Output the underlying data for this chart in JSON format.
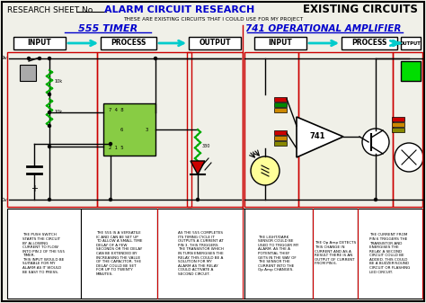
{
  "title_left": "RESEARCH SHEET No",
  "title_center": "ALARM CIRCUIT RESEARCH",
  "title_right": "EXISTING CIRCUITS",
  "subtitle": "THESE ARE EXISTING CIRCUITS THAT I COULD USE FOR MY PROJECT",
  "section1_title": "555 TIMER",
  "section2_title": "741 OPERATIONAL AMPLIFIER",
  "bg_color": "#f0f0e8",
  "border_color": "#000000",
  "blue_color": "#0000cc",
  "red_color": "#cc0000",
  "green_color": "#00cc00",
  "desc1": "THE PUSH SWITCH\nSTARTS THE CIRCUIT\nBY ALLOWING\nCURRENT TO FLOW\nINTO PIN 2 OF THE 555\nTIMER.\nTHIS INPUT WOULD BE\nSUITABLE FOR MY\nALARM AS IT WOULD\nBE EASY TO PRESS.",
  "desc2": "THE 555 IS A VERSATILE\nIC AND CAN BE SET UP\nTO ALLOW A SMALL TIME\nDELAY OF A FEW\nSECONDS OR THE DELAY\nCAN BE EXTENDED BY\nINCREASING THE VALUE\nOF THE CAPACITOR. THE\nDELAY COULD BE SET\nFOR UP TO TWENTY\nMINUTES.",
  "desc3": "AS THE 555 COMPLETES\nITS TIMING CYCLE IT\nOUTPUTS A CURRENT AT\nPIN 3. THIS TRIGGERS\nTHE TRANSISTOR WHICH\nIN TURN ENERGISES THE\nRELAY. THIS COULD BE A\nSOLUTION FOR MY\nALARM AS THE RELAY\nCOULD ACTIVATE A\nSECOND CIRCUIT.",
  "desc4": "THE LIGHT/DARK\nSENSOR COULD BE\nUSED TO TRIGGER MY\nALARM. AS THE A\nPOTENTIAL THIEF\nGETS IN THE WAY OF\nTHE SENSOR THE\nCURRENT INTO THE\nOp Amp CHANGES.",
  "desc5": "THE Op Amp DETECTS\nTHIS CHANGE IN\nCURRENT AND AS A\nRESULT THERE IS AN\nOUTPUT OF CURRENT\nFROM PIN 6.",
  "desc6": "THE CURRENT FROM\nPIN 6 TRIGGERS THE\nTRANSISTOR AND\nENERGISES THE\nRELAY. A SECOND\nCIRCUIT COULD BE\nADDED. THIS COULD\nBE A BUZZER/SOUND\nCIRCUIT OR FLASHING\nLED CIRCUIT."
}
